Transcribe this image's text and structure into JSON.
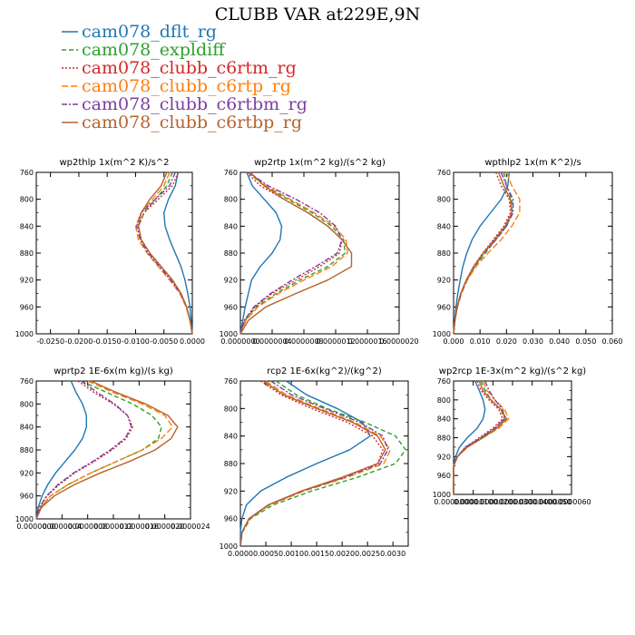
{
  "figure": {
    "title": "CLUBB VAR at229E,9N"
  },
  "legend": [
    {
      "label": "cam078_dflt_rg",
      "color": "#1f77b4",
      "dash": ""
    },
    {
      "label": "cam078_expldiff",
      "color": "#2ca02c",
      "dash": "5,3"
    },
    {
      "label": "cam078_clubb_c6rtm_rg",
      "color": "#d62728",
      "dash": "2,2"
    },
    {
      "label": "cam078_clubb_c6rtp_rg",
      "color": "#ff7f0e",
      "dash": "7,3"
    },
    {
      "label": "cam078_clubb_c6rtbm_rg",
      "color": "#7b3fa0",
      "dash": "6,2,2,2"
    },
    {
      "label": "cam078_clubb_c6rtbp_rg",
      "color": "#b5622d",
      "dash": ""
    }
  ],
  "chart_data": [
    {
      "type": "line",
      "title": "wp2thlp  1x(m^2 K)/s^2",
      "xlim": [
        -0.0275,
        0.0
      ],
      "ylim": [
        760,
        1000
      ],
      "y_inverted": true,
      "xticks": [
        "-0.0250",
        "-0.0200",
        "-0.0150",
        "-0.0100",
        "-0.0050",
        "0.0000"
      ],
      "xtick_values": [
        -0.025,
        -0.02,
        -0.015,
        -0.01,
        -0.005,
        0.0
      ],
      "yticks": [
        "760",
        "800",
        "840",
        "880",
        "920",
        "960",
        "1000"
      ],
      "y": [
        760,
        780,
        800,
        820,
        840,
        860,
        880,
        900,
        920,
        940,
        960,
        980,
        1000
      ],
      "series": [
        {
          "name": "cam078_dflt_rg",
          "x": [
            -0.0025,
            -0.003,
            -0.0042,
            -0.005,
            -0.0048,
            -0.004,
            -0.003,
            -0.002,
            -0.0013,
            -0.0008,
            -0.0004,
            -0.0002,
            0.0
          ]
        },
        {
          "name": "cam078_expldiff",
          "x": [
            -0.0035,
            -0.0045,
            -0.0065,
            -0.0085,
            -0.0095,
            -0.009,
            -0.0075,
            -0.0055,
            -0.0035,
            -0.002,
            -0.001,
            -0.0004,
            0.0
          ]
        },
        {
          "name": "cam078_clubb_c6rtm_rg",
          "x": [
            -0.0025,
            -0.0035,
            -0.006,
            -0.0085,
            -0.0095,
            -0.009,
            -0.0075,
            -0.0055,
            -0.0035,
            -0.002,
            -0.001,
            -0.0004,
            0.0
          ]
        },
        {
          "name": "cam078_clubb_c6rtp_rg",
          "x": [
            -0.004,
            -0.005,
            -0.007,
            -0.009,
            -0.01,
            -0.0095,
            -0.008,
            -0.006,
            -0.004,
            -0.0022,
            -0.0011,
            -0.0004,
            0.0
          ]
        },
        {
          "name": "cam078_clubb_c6rtbm_rg",
          "x": [
            -0.003,
            -0.004,
            -0.0065,
            -0.009,
            -0.0098,
            -0.0092,
            -0.0078,
            -0.0058,
            -0.0038,
            -0.0021,
            -0.001,
            -0.0004,
            0.0
          ]
        },
        {
          "name": "cam078_clubb_c6rtbp_rg",
          "x": [
            -0.0045,
            -0.0055,
            -0.0075,
            -0.009,
            -0.0095,
            -0.009,
            -0.0075,
            -0.0055,
            -0.0035,
            -0.002,
            -0.001,
            -0.0004,
            0.0
          ]
        }
      ]
    },
    {
      "type": "line",
      "title": "wp2rtp  1x(m^2 kg)/(s^2 kg)",
      "xlim": [
        0.0,
        2e-06
      ],
      "ylim": [
        760,
        1000
      ],
      "y_inverted": true,
      "xticks": [
        "0.0000000",
        "0.0000004",
        "0.0000008",
        "0.0000012",
        "0.0000016",
        "0.0000020"
      ],
      "xtick_values": [
        0.0,
        4e-07,
        8e-07,
        1.2e-06,
        1.6e-06,
        2e-06
      ],
      "yticks": [
        "760",
        "800",
        "840",
        "880",
        "920",
        "960",
        "1000"
      ],
      "y": [
        760,
        780,
        800,
        820,
        840,
        860,
        880,
        900,
        920,
        940,
        960,
        980,
        1000
      ],
      "series": [
        {
          "name": "cam078_dflt_rg",
          "x": [
            8e-08,
            1.5e-07,
            3e-07,
            4.5e-07,
            5.2e-07,
            5e-07,
            4e-07,
            2.5e-07,
            1.4e-07,
            1e-07,
            6e-08,
            3e-08,
            0.0
          ]
        },
        {
          "name": "cam078_expldiff",
          "x": [
            1e-07,
            3e-07,
            6e-07,
            9e-07,
            1.15e-06,
            1.3e-06,
            1.32e-06,
            1.1e-06,
            7.5e-07,
            4.5e-07,
            2e-07,
            6e-08,
            0.0
          ]
        },
        {
          "name": "cam078_clubb_c6rtm_rg",
          "x": [
            8e-08,
            2.5e-07,
            5.5e-07,
            8.5e-07,
            1.1e-06,
            1.28e-06,
            1.25e-06,
            1e-06,
            7e-07,
            4e-07,
            1.8e-07,
            5e-08,
            0.0
          ]
        },
        {
          "name": "cam078_clubb_c6rtp_rg",
          "x": [
            1.2e-07,
            3.2e-07,
            6.3e-07,
            9.3e-07,
            1.18e-06,
            1.33e-06,
            1.35e-06,
            1.15e-06,
            8e-07,
            4.8e-07,
            2.2e-07,
            7e-08,
            0.0
          ]
        },
        {
          "name": "cam078_clubb_c6rtbm_rg",
          "x": [
            1e-07,
            3.5e-07,
            7e-07,
            1e-06,
            1.2e-06,
            1.28e-06,
            1.22e-06,
            9.5e-07,
            6.5e-07,
            3.8e-07,
            1.7e-07,
            5e-08,
            0.0
          ]
        },
        {
          "name": "cam078_clubb_c6rtbp_rg",
          "x": [
            1.2e-07,
            3e-07,
            5.5e-07,
            8.5e-07,
            1.1e-06,
            1.28e-06,
            1.4e-06,
            1.4e-06,
            1.1e-06,
            7e-07,
            3.2e-07,
            1e-07,
            0.0
          ]
        }
      ]
    },
    {
      "type": "line",
      "title": "wpthlp2  1x(m K^2)/s",
      "xlim": [
        0.0,
        0.06
      ],
      "ylim": [
        760,
        1000
      ],
      "y_inverted": true,
      "xticks": [
        "0.000",
        "0.010",
        "0.020",
        "0.030",
        "0.040",
        "0.050",
        "0.060"
      ],
      "xtick_values": [
        0.0,
        0.01,
        0.02,
        0.03,
        0.04,
        0.05,
        0.06
      ],
      "yticks": [
        "760",
        "800",
        "840",
        "880",
        "920",
        "960",
        "1000"
      ],
      "y": [
        760,
        780,
        800,
        820,
        840,
        860,
        880,
        900,
        920,
        940,
        960,
        980,
        1000
      ],
      "series": [
        {
          "name": "cam078_dflt_rg",
          "x": [
            0.021,
            0.0205,
            0.018,
            0.014,
            0.01,
            0.007,
            0.005,
            0.0035,
            0.0025,
            0.0016,
            0.0009,
            0.0004,
            0.0
          ]
        },
        {
          "name": "cam078_expldiff",
          "x": [
            0.019,
            0.02,
            0.022,
            0.022,
            0.02,
            0.016,
            0.012,
            0.008,
            0.005,
            0.0028,
            0.0014,
            0.0005,
            0.0
          ]
        },
        {
          "name": "cam078_clubb_c6rtm_rg",
          "x": [
            0.016,
            0.018,
            0.021,
            0.0215,
            0.019,
            0.015,
            0.011,
            0.0075,
            0.0048,
            0.0027,
            0.0013,
            0.0005,
            0.0
          ]
        },
        {
          "name": "cam078_clubb_c6rtp_rg",
          "x": [
            0.02,
            0.022,
            0.025,
            0.025,
            0.022,
            0.018,
            0.013,
            0.0085,
            0.0052,
            0.003,
            0.0015,
            0.0005,
            0.0
          ]
        },
        {
          "name": "cam078_clubb_c6rtbm_rg",
          "x": [
            0.018,
            0.02,
            0.0225,
            0.0225,
            0.02,
            0.016,
            0.0115,
            0.0078,
            0.0049,
            0.0028,
            0.0014,
            0.0005,
            0.0
          ]
        },
        {
          "name": "cam078_clubb_c6rtbp_rg",
          "x": [
            0.017,
            0.019,
            0.0215,
            0.022,
            0.0195,
            0.0155,
            0.0112,
            0.0076,
            0.0048,
            0.0027,
            0.0013,
            0.0005,
            0.0
          ]
        }
      ]
    },
    {
      "type": "line",
      "title": "wprtp2  1E-6x(m kg)/(s kg)",
      "xlim": [
        0.0,
        2.4e-06
      ],
      "ylim": [
        760,
        1000
      ],
      "y_inverted": true,
      "xticks": [
        "0.0000000",
        "0.0000004",
        "0.0000008",
        "0.0000012",
        "0.0000016",
        "0.0000020",
        "0.0000024"
      ],
      "xtick_values": [
        0.0,
        4e-07,
        8e-07,
        1.2e-06,
        1.6e-06,
        2e-06,
        2.4e-06
      ],
      "yticks": [
        "760",
        "800",
        "840",
        "880",
        "920",
        "960",
        "1000"
      ],
      "y": [
        760,
        780,
        800,
        820,
        840,
        860,
        880,
        900,
        920,
        940,
        960,
        980,
        1000
      ],
      "series": [
        {
          "name": "cam078_dflt_rg",
          "x": [
            5.4e-07,
            6.2e-07,
            7.2e-07,
            7.8e-07,
            7.8e-07,
            7.2e-07,
            6e-07,
            4.5e-07,
            3e-07,
            1.8e-07,
            9e-08,
            3e-08,
            0.0
          ]
        },
        {
          "name": "cam078_expldiff",
          "x": [
            7e-07,
            1.1e-06,
            1.5e-06,
            1.8e-06,
            1.95e-06,
            1.9e-06,
            1.65e-06,
            1.25e-06,
            8.5e-07,
            5e-07,
            2.2e-07,
            7e-08,
            0.0
          ]
        },
        {
          "name": "cam078_clubb_c6rtm_rg",
          "x": [
            6.5e-07,
            9e-07,
            1.2e-06,
            1.42e-06,
            1.5e-06,
            1.4e-06,
            1.18e-06,
            9e-07,
            6e-07,
            3.6e-07,
            1.7e-07,
            5e-08,
            0.0
          ]
        },
        {
          "name": "cam078_clubb_c6rtp_rg",
          "x": [
            8e-07,
            1.2e-06,
            1.65e-06,
            2e-06,
            2.12e-06,
            1.95e-06,
            1.65e-06,
            1.25e-06,
            8.5e-07,
            5e-07,
            2.2e-07,
            7e-08,
            0.0
          ]
        },
        {
          "name": "cam078_clubb_c6rtbm_rg",
          "x": [
            7e-07,
            9.5e-07,
            1.22e-06,
            1.42e-06,
            1.48e-06,
            1.38e-06,
            1.15e-06,
            8.8e-07,
            5.8e-07,
            3.4e-07,
            1.6e-07,
            5e-08,
            0.0
          ]
        },
        {
          "name": "cam078_clubb_c6rtbp_rg",
          "x": [
            8.5e-07,
            1.25e-06,
            1.7e-06,
            2.05e-06,
            2.2e-06,
            2.1e-06,
            1.85e-06,
            1.45e-06,
            1e-06,
            6e-07,
            2.8e-07,
            8e-08,
            0.0
          ]
        }
      ]
    },
    {
      "type": "line",
      "title": "rcp2  1E-6x(kg^2)/(kg^2)",
      "xlim": [
        0.0,
        0.0033
      ],
      "ylim": [
        760,
        1000
      ],
      "y_inverted": true,
      "xticks": [
        "0.0000",
        "0.0005",
        "0.0010",
        "0.0015",
        "0.0020",
        "0.0025",
        "0.0030"
      ],
      "xtick_values": [
        0.0,
        0.0005,
        0.001,
        0.0015,
        0.002,
        0.0025,
        0.003
      ],
      "yticks": [
        "760",
        "800",
        "840",
        "880",
        "920",
        "960",
        "1000"
      ],
      "y": [
        760,
        780,
        800,
        820,
        840,
        860,
        880,
        900,
        920,
        940,
        960,
        980,
        1000
      ],
      "series": [
        {
          "name": "cam078_dflt_rg",
          "x": [
            0.0009,
            0.0013,
            0.0019,
            0.0024,
            0.00255,
            0.00215,
            0.0015,
            0.0009,
            0.0004,
            0.00012,
            3e-05,
            0.0,
            0.0
          ]
        },
        {
          "name": "cam078_expldiff",
          "x": [
            0.0007,
            0.0011,
            0.0017,
            0.00245,
            0.00305,
            0.00325,
            0.00305,
            0.0023,
            0.0014,
            0.00065,
            0.0002,
            4e-05,
            0.0
          ]
        },
        {
          "name": "cam078_clubb_c6rtm_rg",
          "x": [
            0.0004,
            0.0008,
            0.0014,
            0.0021,
            0.0026,
            0.0028,
            0.0027,
            0.002,
            0.0012,
            0.00055,
            0.00017,
            3e-05,
            0.0
          ]
        },
        {
          "name": "cam078_clubb_c6rtp_rg",
          "x": [
            0.0005,
            0.0009,
            0.00155,
            0.00225,
            0.00275,
            0.00295,
            0.00282,
            0.0021,
            0.00125,
            0.00058,
            0.00018,
            3e-05,
            0.0
          ]
        },
        {
          "name": "cam078_clubb_c6rtbm_rg",
          "x": [
            0.0006,
            0.001,
            0.00165,
            0.00235,
            0.0028,
            0.0029,
            0.00275,
            0.00205,
            0.00122,
            0.00056,
            0.00017,
            3e-05,
            0.0
          ]
        },
        {
          "name": "cam078_clubb_c6rtbp_rg",
          "x": [
            0.00045,
            0.00085,
            0.0015,
            0.0022,
            0.0027,
            0.00285,
            0.0027,
            0.002,
            0.0012,
            0.00055,
            0.00017,
            3e-05,
            0.0
          ]
        }
      ]
    },
    {
      "type": "line",
      "title": "wp2rcp  1E-3x(m^2 kg)/(s^2 kg)",
      "xlim": [
        0.0,
        6e-06
      ],
      "ylim": [
        760,
        1000
      ],
      "y_inverted": true,
      "xticks": [
        "0.0000000",
        "0.0000010",
        "0.0000020",
        "0.0000030",
        "0.0000040",
        "0.0000050",
        "0.0000060"
      ],
      "xtick_values": [
        0.0,
        1e-06,
        2e-06,
        3e-06,
        4e-06,
        5e-06,
        6e-06
      ],
      "yticks": [
        "760",
        "800",
        "840",
        "880",
        "920",
        "960",
        "1000"
      ],
      "y": [
        760,
        780,
        800,
        820,
        840,
        860,
        880,
        900,
        920,
        940,
        960,
        980,
        1000
      ],
      "series": [
        {
          "name": "cam078_dflt_rg",
          "x": [
            1.1e-06,
            1.3e-06,
            1.5e-06,
            1.6e-06,
            1.5e-06,
            1.2e-06,
            7e-07,
            3e-07,
            1e-07,
            0.0,
            0.0,
            0.0,
            0.0
          ]
        },
        {
          "name": "cam078_expldiff",
          "x": [
            1.4e-06,
            1.6e-06,
            1.9e-06,
            2.4e-06,
            2.6e-06,
            2.1e-06,
            1.4e-06,
            7e-07,
            2e-07,
            0.0,
            0.0,
            0.0,
            0.0
          ]
        },
        {
          "name": "cam078_clubb_c6rtm_rg",
          "x": [
            1.2e-06,
            1.4e-06,
            1.8e-06,
            2.3e-06,
            2.5e-06,
            2e-06,
            1.3e-06,
            6e-07,
            2e-07,
            0.0,
            0.0,
            0.0,
            0.0
          ]
        },
        {
          "name": "cam078_clubb_c6rtp_rg",
          "x": [
            1.5e-06,
            1.7e-06,
            2.1e-06,
            2.6e-06,
            2.8e-06,
            2.3e-06,
            1.5e-06,
            7e-07,
            2e-07,
            0.0,
            0.0,
            0.0,
            0.0
          ]
        },
        {
          "name": "cam078_clubb_c6rtbm_rg",
          "x": [
            1.6e-06,
            1.8e-06,
            2.1e-06,
            2.5e-06,
            2.6e-06,
            2.1e-06,
            1.4e-06,
            6e-07,
            2e-07,
            0.0,
            0.0,
            0.0,
            0.0
          ]
        },
        {
          "name": "cam078_clubb_c6rtbp_rg",
          "x": [
            1.3e-06,
            1.5e-06,
            1.9e-06,
            2.4e-06,
            2.7e-06,
            2.2e-06,
            1.5e-06,
            7e-07,
            2e-07,
            0.0,
            0.0,
            0.0,
            0.0
          ]
        }
      ]
    }
  ]
}
